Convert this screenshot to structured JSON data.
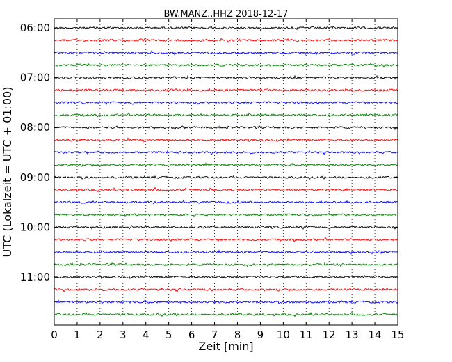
{
  "chart_data": {
    "type": "line",
    "title": "BW.MANZ..HHZ 2018-12-17",
    "xlabel": "Zeit  [min]",
    "ylabel": "UTC (Lokalzeit = UTC + 01:00)",
    "xlim": [
      0,
      15
    ],
    "x_ticks": [
      "0",
      "1",
      "2",
      "3",
      "4",
      "5",
      "6",
      "7",
      "8",
      "9",
      "10",
      "11",
      "12",
      "13",
      "14",
      "15"
    ],
    "y_tick_labels": [
      "06:00",
      "07:00",
      "08:00",
      "09:00",
      "10:00",
      "11:00"
    ],
    "rows_per_hour": 4,
    "row_count": 24,
    "row_colors": [
      "#000000",
      "#ff0000",
      "#0000ff",
      "#007f00"
    ],
    "grid": "vertical dotted at each minute"
  }
}
